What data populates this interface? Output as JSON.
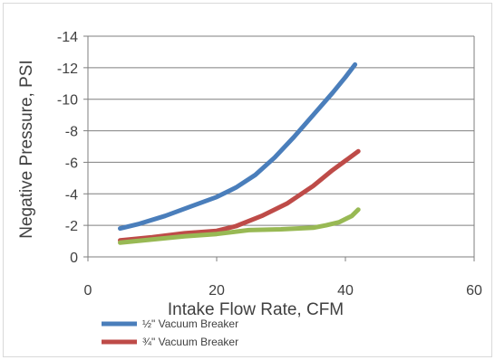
{
  "chart_data": {
    "type": "line",
    "title": "",
    "xlabel": "Intake Flow Rate, CFM",
    "ylabel": "Negative Pressure, PSI",
    "xlim": [
      0,
      60
    ],
    "ylim": [
      0,
      -14
    ],
    "x_ticks": [
      "0",
      "20",
      "40",
      "60"
    ],
    "y_ticks": [
      "0",
      "-2",
      "-4",
      "-6",
      "-8",
      "-10",
      "-12",
      "-14"
    ],
    "y_axis_reversed": true,
    "grid": "horizontal",
    "legend_placement": "bottom-left",
    "series": [
      {
        "name": "½\" Vacuum Breaker",
        "color": "#4a7ebb",
        "points": [
          [
            5,
            -1.8
          ],
          [
            8,
            -2.1
          ],
          [
            12,
            -2.6
          ],
          [
            16,
            -3.2
          ],
          [
            20,
            -3.8
          ],
          [
            23,
            -4.4
          ],
          [
            26,
            -5.2
          ],
          [
            29,
            -6.3
          ],
          [
            32,
            -7.6
          ],
          [
            35,
            -9.0
          ],
          [
            38,
            -10.4
          ],
          [
            40,
            -11.4
          ],
          [
            41.5,
            -12.2
          ]
        ]
      },
      {
        "name": "¾\" Vacuum Breaker",
        "color": "#be4b48",
        "points": [
          [
            5,
            -1.05
          ],
          [
            10,
            -1.25
          ],
          [
            15,
            -1.5
          ],
          [
            20,
            -1.65
          ],
          [
            23,
            -1.95
          ],
          [
            27,
            -2.6
          ],
          [
            31,
            -3.4
          ],
          [
            35,
            -4.5
          ],
          [
            38,
            -5.5
          ],
          [
            40,
            -6.1
          ],
          [
            42,
            -6.7
          ]
        ]
      },
      {
        "name": "",
        "color": "#98b954",
        "points": [
          [
            5,
            -0.9
          ],
          [
            10,
            -1.1
          ],
          [
            15,
            -1.3
          ],
          [
            20,
            -1.45
          ],
          [
            25,
            -1.7
          ],
          [
            30,
            -1.75
          ],
          [
            35,
            -1.85
          ],
          [
            37,
            -2.0
          ],
          [
            39,
            -2.2
          ],
          [
            41,
            -2.6
          ],
          [
            42,
            -3.0
          ]
        ]
      }
    ]
  }
}
